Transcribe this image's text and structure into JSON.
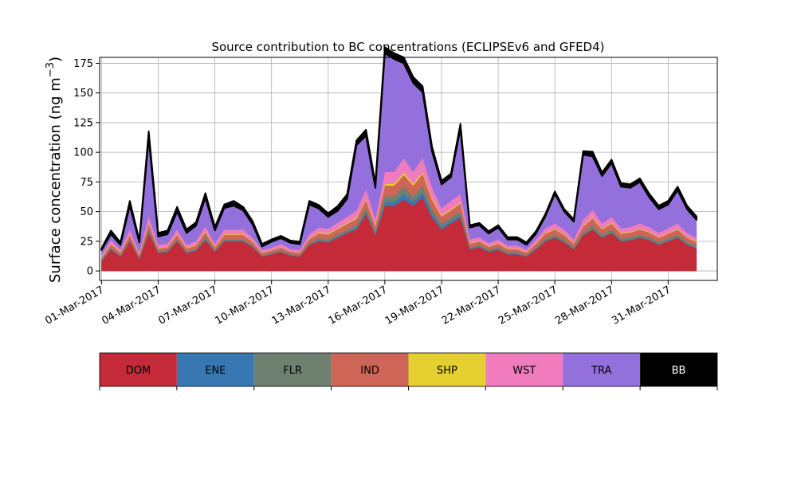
{
  "chart_data": {
    "type": "area",
    "stacked": true,
    "title": "Source contribution to BC concentrations (ECLIPSEv6 and GFED4)",
    "ylabel": "Surface concentration (ng m",
    "ylabel_unit_exp": "−3",
    "ylabel_close": ")",
    "xlabel": "",
    "ylim": [
      -8,
      180
    ],
    "yticks": [
      0,
      25,
      50,
      75,
      100,
      125,
      150,
      175
    ],
    "xlim": [
      -0.1,
      32.6
    ],
    "xticks": [
      0,
      3,
      6,
      9,
      12,
      15,
      18,
      21,
      24,
      27,
      30
    ],
    "xtick_labels": [
      "01-Mar-2017",
      "04-Mar-2017",
      "07-Mar-2017",
      "10-Mar-2017",
      "13-Mar-2017",
      "16-Mar-2017",
      "19-Mar-2017",
      "22-Mar-2017",
      "25-Mar-2017",
      "28-Mar-2017",
      "31-Mar-2017"
    ],
    "grid": true,
    "legend_placement": "below",
    "x_days_since_start": [
      0,
      0.5,
      1,
      1.5,
      2,
      2.5,
      3,
      3.5,
      4,
      4.5,
      5,
      5.5,
      6,
      6.5,
      7,
      7.5,
      8,
      8.5,
      9,
      9.5,
      10,
      10.5,
      11,
      11.5,
      12,
      12.5,
      13,
      13.5,
      14,
      14.5,
      15,
      15.5,
      16,
      16.5,
      17,
      17.5,
      18,
      18.5,
      19,
      19.5,
      20,
      20.5,
      21,
      21.5,
      22,
      22.5,
      23,
      23.5,
      24,
      24.5,
      25,
      25.5,
      26,
      26.5,
      27,
      27.5,
      28,
      28.5,
      29,
      29.5,
      30,
      30.5,
      31,
      31.5
    ],
    "series": [
      {
        "name": "DOM",
        "color": "#c42a37",
        "values": [
          8,
          18,
          12,
          25,
          10,
          32,
          15,
          16,
          25,
          15,
          17,
          26,
          16,
          25,
          25,
          25,
          20,
          12,
          14,
          16,
          13,
          12,
          22,
          25,
          24,
          28,
          32,
          35,
          48,
          30,
          55,
          55,
          60,
          55,
          62,
          45,
          35,
          40,
          45,
          18,
          20,
          16,
          18,
          14,
          14,
          12,
          18,
          25,
          28,
          24,
          18,
          30,
          35,
          28,
          32,
          25,
          26,
          28,
          26,
          22,
          25,
          28,
          22,
          19
        ]
      },
      {
        "name": "ENE",
        "color": "#3878b2",
        "values": [
          0.5,
          0.5,
          0.5,
          0.5,
          0.5,
          0.8,
          0.5,
          0.5,
          0.5,
          0.5,
          0.5,
          0.8,
          0.5,
          0.5,
          0.5,
          0.5,
          0.5,
          0.3,
          0.3,
          0.3,
          0.3,
          0.3,
          0.5,
          0.8,
          0.8,
          0.8,
          0.8,
          1,
          2,
          1,
          3,
          3,
          5,
          3,
          4,
          3,
          2,
          2,
          2,
          0.5,
          0.5,
          0.5,
          0.5,
          0.5,
          0.5,
          0.5,
          0.5,
          0.5,
          0.5,
          0.5,
          0.5,
          0.5,
          0.5,
          0.5,
          0.5,
          0.5,
          0.5,
          0.5,
          0.5,
          0.5,
          0.5,
          0.5,
          0.5,
          0.5
        ]
      },
      {
        "name": "FLR",
        "color": "#6e8070",
        "values": [
          1,
          1,
          1,
          1,
          1,
          2,
          1,
          1,
          1,
          1,
          1,
          2,
          1,
          1,
          1,
          1,
          1,
          1,
          1,
          1,
          1,
          1,
          1,
          2,
          2,
          2,
          2,
          3,
          3,
          2,
          5,
          5,
          6,
          5,
          6,
          4,
          3,
          3,
          3,
          1.5,
          1.5,
          1.5,
          1.5,
          1.5,
          1.5,
          1,
          1.5,
          2,
          2,
          2,
          1.5,
          2,
          3,
          2,
          2.5,
          2,
          2,
          2,
          2,
          2,
          2,
          2,
          2,
          2
        ]
      },
      {
        "name": "IND",
        "color": "#cd6657",
        "values": [
          1.5,
          3,
          2,
          4,
          2,
          5,
          2.5,
          2.5,
          4,
          2.5,
          3,
          4,
          2.5,
          4,
          4,
          4,
          3,
          2,
          2,
          2.5,
          2,
          2,
          3.5,
          4,
          4,
          4.5,
          5,
          5,
          7,
          5,
          9,
          9,
          10,
          9,
          10,
          8,
          6,
          6,
          7,
          3,
          3,
          2.5,
          3,
          2.5,
          2.5,
          2,
          3,
          4,
          4.5,
          4,
          3,
          5,
          6,
          4.5,
          5,
          4,
          4,
          4.5,
          4,
          3.5,
          4,
          4.5,
          3.5,
          3
        ]
      },
      {
        "name": "SHP",
        "color": "#e6d030",
        "values": [
          0.5,
          0.5,
          0.5,
          0.5,
          0.5,
          0.8,
          0.5,
          0.5,
          0.5,
          0.5,
          0.5,
          0.8,
          0.5,
          0.5,
          0.5,
          0.5,
          0.5,
          0.3,
          0.3,
          0.3,
          0.3,
          0.3,
          0.5,
          0.8,
          0.8,
          0.8,
          0.8,
          1,
          1,
          1,
          1.5,
          1.5,
          2,
          1.5,
          1.5,
          1.5,
          1,
          1,
          1,
          0.5,
          0.5,
          0.5,
          0.5,
          0.5,
          0.5,
          0.5,
          0.5,
          0.5,
          0.5,
          0.5,
          0.5,
          0.5,
          1,
          0.5,
          0.8,
          0.5,
          0.5,
          0.5,
          0.5,
          0.5,
          0.5,
          0.5,
          0.5,
          0.5
        ]
      },
      {
        "name": "WST",
        "color": "#f07cbd",
        "values": [
          2,
          3,
          2,
          4,
          2,
          6,
          2.5,
          2.5,
          4,
          2.5,
          3,
          4,
          2.5,
          4,
          4,
          4,
          3,
          2,
          2,
          2.5,
          2,
          2,
          3.5,
          4,
          4,
          4.5,
          5,
          6,
          8,
          5,
          10,
          10,
          12,
          10,
          12,
          9,
          6,
          7,
          7,
          3,
          3,
          2.5,
          3,
          2.5,
          2.5,
          2,
          3,
          4,
          4.5,
          4,
          3,
          5,
          6,
          4.5,
          5,
          4,
          4,
          4.5,
          4,
          3.5,
          4,
          4.5,
          3.5,
          3
        ]
      },
      {
        "name": "TRA",
        "color": "#9370db",
        "values": [
          4,
          5,
          4,
          20,
          8,
          65,
          7,
          8,
          15,
          10,
          13,
          24,
          11,
          18,
          20,
          16,
          11,
          3,
          5,
          5,
          5,
          5,
          25,
          16,
          10,
          10,
          15,
          55,
          45,
          26,
          100,
          95,
          80,
          75,
          55,
          30,
          20,
          20,
          55,
          10,
          10,
          8,
          10,
          5,
          5,
          4,
          5,
          10,
          25,
          15,
          15,
          55,
          45,
          40,
          45,
          35,
          33,
          35,
          25,
          20,
          20,
          28,
          20,
          15
        ]
      },
      {
        "name": "BB",
        "color": "#000000",
        "values": [
          1.5,
          3,
          2,
          4,
          2,
          6,
          3,
          3,
          4,
          3,
          3,
          4,
          3,
          3,
          4,
          3,
          3,
          2,
          2,
          2,
          2,
          2,
          3,
          3,
          3,
          4,
          4,
          4,
          5,
          4,
          5,
          5,
          5,
          5,
          5,
          4,
          3,
          3,
          4,
          2,
          2,
          2,
          2,
          2,
          2,
          2,
          2,
          2,
          2,
          2,
          2,
          3,
          4,
          3,
          3,
          3,
          3,
          3,
          3,
          3,
          3,
          3,
          3,
          3
        ]
      }
    ]
  }
}
